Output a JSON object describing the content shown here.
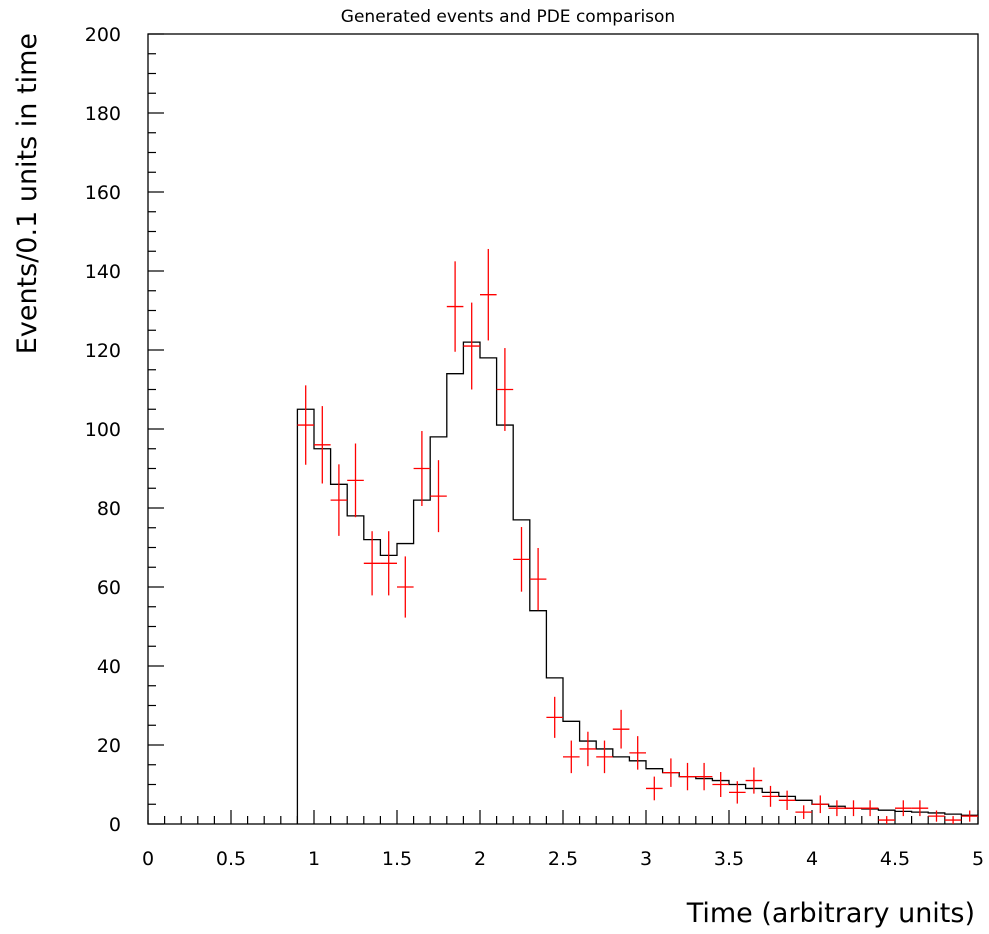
{
  "chart_data": {
    "type": "line",
    "title": "Generated events and PDE comparison",
    "xlabel": "Time (arbitrary units)",
    "ylabel": "Events/0.1 units in time",
    "xlim": [
      0,
      5
    ],
    "ylim": [
      0,
      200
    ],
    "grid": false,
    "x_ticks": [
      "0",
      "0.5",
      "1",
      "1.5",
      "2",
      "2.5",
      "3",
      "3.5",
      "4",
      "4.5",
      "5"
    ],
    "y_ticks": [
      "0",
      "20",
      "40",
      "60",
      "80",
      "100",
      "120",
      "140",
      "160",
      "180",
      "200"
    ],
    "series": [
      {
        "kind": "histogram",
        "color": "#000000",
        "bin_edges": [
          0.9,
          1.0,
          1.1,
          1.2,
          1.3,
          1.4,
          1.5,
          1.6,
          1.7,
          1.8,
          1.9,
          2.0,
          2.1,
          2.2,
          2.3,
          2.4,
          2.5,
          2.6,
          2.7,
          2.8,
          2.9,
          3.0,
          3.1,
          3.2,
          3.3,
          3.4,
          3.5,
          3.6,
          3.7,
          3.8,
          3.9,
          4.0,
          4.1,
          4.2,
          4.3,
          4.4,
          4.5,
          4.6,
          4.7,
          4.8,
          4.9,
          5.0
        ],
        "values": [
          105,
          95,
          86,
          78,
          72,
          68,
          71,
          82,
          98,
          114,
          122,
          118,
          101,
          77,
          54,
          37,
          26,
          21,
          19,
          17,
          16,
          14,
          13,
          12,
          11.5,
          11,
          10,
          9,
          8,
          7,
          6,
          5,
          4.5,
          4,
          3.8,
          3.5,
          3.2,
          3,
          2.8,
          2.5,
          2.2
        ]
      },
      {
        "kind": "points_with_errors",
        "color": "#ff0000",
        "x": [
          0.95,
          1.05,
          1.15,
          1.25,
          1.35,
          1.45,
          1.55,
          1.65,
          1.75,
          1.85,
          1.95,
          2.05,
          2.15,
          2.25,
          2.35,
          2.45,
          2.55,
          2.65,
          2.75,
          2.85,
          2.95,
          3.05,
          3.15,
          3.25,
          3.35,
          3.45,
          3.55,
          3.65,
          3.75,
          3.85,
          3.95,
          4.05,
          4.15,
          4.25,
          4.35,
          4.45,
          4.55,
          4.65,
          4.75,
          4.85,
          4.95
        ],
        "values": [
          101,
          96,
          82,
          87,
          66,
          66,
          60,
          90,
          83,
          131,
          121,
          134,
          110,
          67,
          62,
          27,
          17,
          19,
          17,
          24,
          18,
          9,
          13,
          12,
          12,
          10,
          8,
          11,
          7,
          6,
          3,
          5,
          4,
          4,
          4,
          1,
          4,
          4,
          2,
          1,
          2
        ]
      }
    ]
  }
}
